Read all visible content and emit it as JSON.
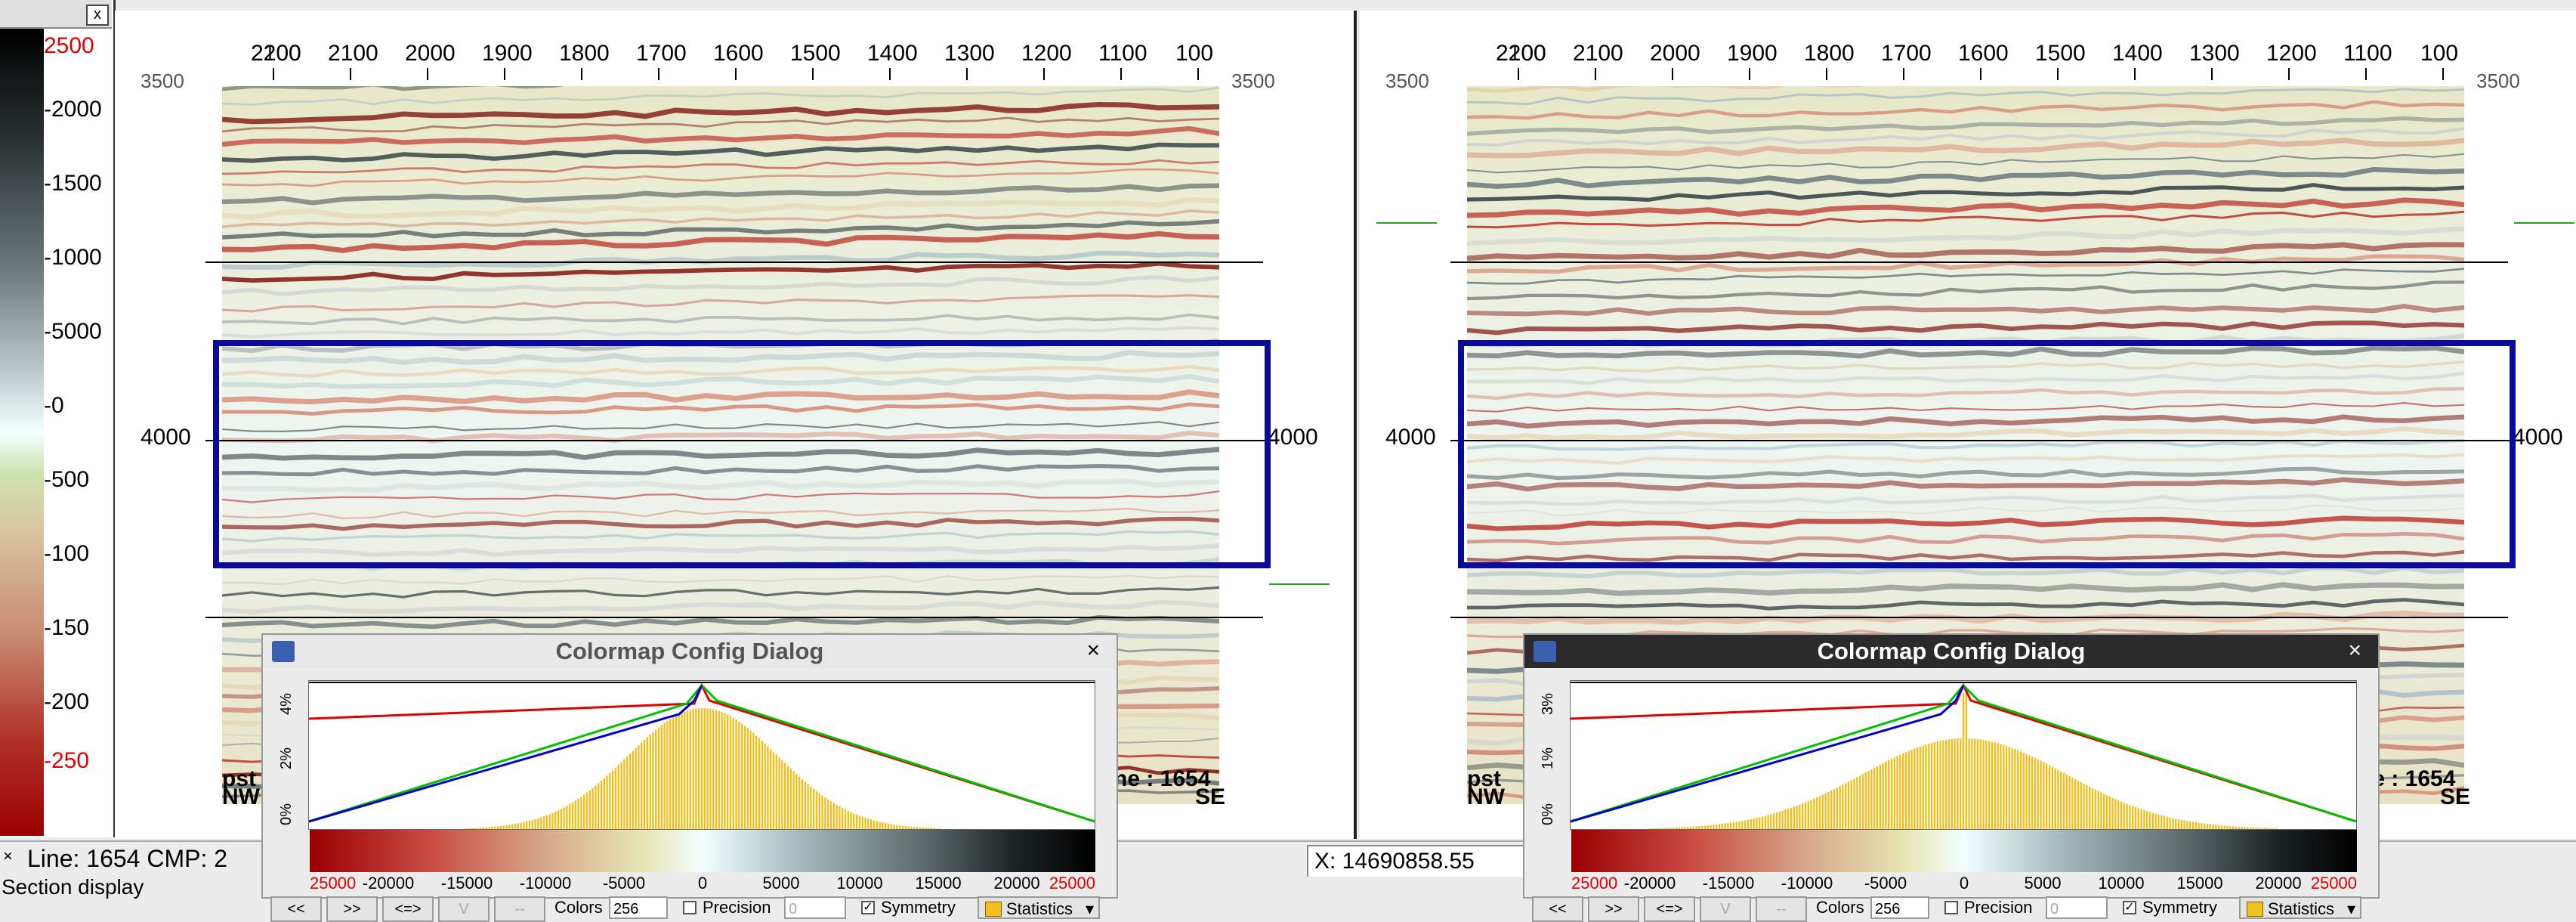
{
  "colorbar": {
    "close": "x",
    "ticks": [
      {
        "label": "2500",
        "red": true
      },
      {
        "label": "-2000",
        "red": false
      },
      {
        "label": "-1500",
        "red": false
      },
      {
        "label": "-1000",
        "red": false
      },
      {
        "label": "-5000",
        "red": false
      },
      {
        "label": "-0",
        "red": false
      },
      {
        "label": "-500",
        "red": false
      },
      {
        "label": "-100",
        "red": false
      },
      {
        "label": "-150",
        "red": false
      },
      {
        "label": "-200",
        "red": false
      },
      {
        "label": "-250",
        "red": true
      }
    ]
  },
  "section_axis": {
    "x_ticks": [
      "2200",
      "2100",
      "2000",
      "1900",
      "1800",
      "1700",
      "1600",
      "1500",
      "1400",
      "1300",
      "1200",
      "1100",
      "100"
    ],
    "x_first_overlap": "2100",
    "y_top": "3500",
    "y_mid": "4000",
    "left_corner": "NW",
    "right_corner": "SE",
    "line_label": "ne : 1654",
    "left_partial": "pst"
  },
  "status": {
    "line_cmp": "Line: 1654  CMP: 2",
    "x_readout": "X: 14690858.55",
    "section_display": "Section display"
  },
  "dialog": {
    "title": "Colormap Config Dialog",
    "close": "×",
    "left_pct": [
      "4%",
      "2%",
      "0%"
    ],
    "right_pct": [
      "3%",
      "1%",
      "0%"
    ],
    "ticks": [
      {
        "label": "25000",
        "red": true
      },
      {
        "label": "-20000",
        "red": false
      },
      {
        "label": "-15000",
        "red": false
      },
      {
        "label": "-10000",
        "red": false
      },
      {
        "label": "-5000",
        "red": false
      },
      {
        "label": "0",
        "red": false
      },
      {
        "label": "5000",
        "red": false
      },
      {
        "label": "10000",
        "red": false
      },
      {
        "label": "15000",
        "red": false
      },
      {
        "label": "20000",
        "red": false
      },
      {
        "label": "25000",
        "red": true
      }
    ],
    "btn_prev": "<<",
    "btn_next": ">>",
    "btn_swap": "<=>",
    "btn_v": "V",
    "btn_dash": "--",
    "colors_label": "Colors",
    "colors_value": "256",
    "precision_label": "Precision",
    "precision_value": "0",
    "symmetry_label": "Symmetry",
    "statistics_label": "Statistics"
  }
}
